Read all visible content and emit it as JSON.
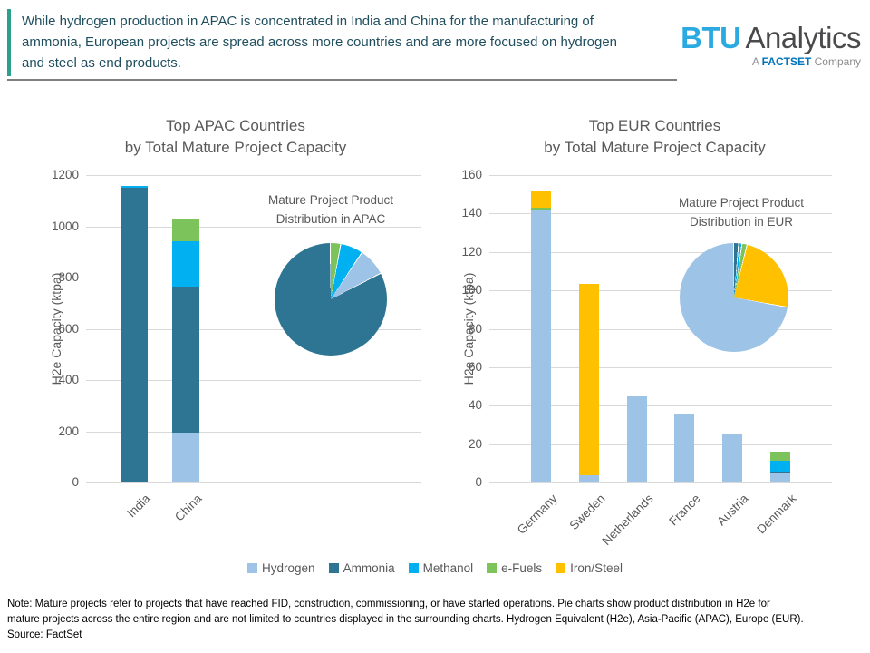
{
  "header": {
    "summary_lines": [
      "While hydrogen production in APAC is concentrated in India and China for the manufacturing of",
      "ammonia, European projects are spread across more countries and are more focused on hydrogen",
      "and steel as end products."
    ],
    "accent_color": "#2BA08F",
    "text_color": "#1F4E5E"
  },
  "logo": {
    "btu": "BTU",
    "analytics": "Analytics",
    "tagline_prefix": "A",
    "tagline_brand": "FACTSET",
    "tagline_suffix": "Company",
    "btu_color": "#2AAAE1",
    "factset_color": "#0073BC"
  },
  "legend": {
    "items": [
      {
        "label": "Hydrogen",
        "color": "#9DC3E6"
      },
      {
        "label": "Ammonia",
        "color": "#2E7593"
      },
      {
        "label": "Methanol",
        "color": "#00B0F0"
      },
      {
        "label": "e-Fuels",
        "color": "#7DC35B"
      },
      {
        "label": "Iron/Steel",
        "color": "#FFC000"
      }
    ]
  },
  "chart_data": [
    {
      "id": "apac-bar",
      "type": "bar",
      "stacked": true,
      "title_lines": [
        "Top APAC Countries",
        "by Total Mature Project Capacity"
      ],
      "ylabel": "H2e Capacity (ktpa)",
      "ylim": [
        0,
        1200
      ],
      "ytick_step": 200,
      "grid": true,
      "categories": [
        "India",
        "China"
      ],
      "series": [
        {
          "name": "Hydrogen",
          "values": [
            5,
            195
          ]
        },
        {
          "name": "Ammonia",
          "values": [
            1145,
            570
          ]
        },
        {
          "name": "Methanol",
          "values": [
            7,
            175
          ]
        },
        {
          "name": "e-Fuels",
          "values": [
            0,
            85
          ]
        },
        {
          "name": "Iron/Steel",
          "values": [
            0,
            0
          ]
        }
      ]
    },
    {
      "id": "apac-pie",
      "type": "pie",
      "title_lines": [
        "Mature Project Product",
        "Distribution in APAC"
      ],
      "slices": [
        {
          "name": "e-Fuels",
          "pct": 3
        },
        {
          "name": "Methanol",
          "pct": 6.5
        },
        {
          "name": "Hydrogen",
          "pct": 8
        },
        {
          "name": "Ammonia",
          "pct": 82.5
        }
      ]
    },
    {
      "id": "eur-bar",
      "type": "bar",
      "stacked": true,
      "title_lines": [
        "Top EUR Countries",
        "by Total Mature Project Capacity"
      ],
      "ylabel": "H2e Capacity (ktpa)",
      "ylim": [
        0,
        160
      ],
      "ytick_step": 20,
      "grid": true,
      "categories": [
        "Germany",
        "Sweden",
        "Netherlands",
        "France",
        "Austria",
        "Denmark"
      ],
      "series": [
        {
          "name": "Hydrogen",
          "values": [
            142,
            4,
            45,
            36,
            25.5,
            4.5
          ]
        },
        {
          "name": "Ammonia",
          "values": [
            0,
            0,
            0,
            0,
            0,
            1
          ]
        },
        {
          "name": "Methanol",
          "values": [
            0,
            0,
            0,
            0,
            0,
            6
          ]
        },
        {
          "name": "e-Fuels",
          "values": [
            1,
            0,
            0,
            0,
            0,
            4.5
          ]
        },
        {
          "name": "Iron/Steel",
          "values": [
            8.5,
            99.5,
            0,
            0,
            0,
            0
          ]
        }
      ]
    },
    {
      "id": "eur-pie",
      "type": "pie",
      "title_lines": [
        "Mature Project Product",
        "Distribution in EUR"
      ],
      "slices": [
        {
          "name": "Ammonia",
          "pct": 1.5
        },
        {
          "name": "Methanol",
          "pct": 1
        },
        {
          "name": "e-Fuels",
          "pct": 1.5
        },
        {
          "name": "Iron/Steel",
          "pct": 24
        },
        {
          "name": "Hydrogen",
          "pct": 72
        }
      ]
    }
  ],
  "footer": {
    "note_lines": [
      "Note: Mature projects refer to projects that have reached FID, construction, commissioning, or have started operations. Pie charts show product distribution in H2e for",
      "mature projects across the entire region and are not limited to countries displayed in the surrounding charts. Hydrogen Equivalent (H2e), Asia-Pacific (APAC), Europe (EUR)."
    ],
    "source": "Source: FactSet"
  }
}
